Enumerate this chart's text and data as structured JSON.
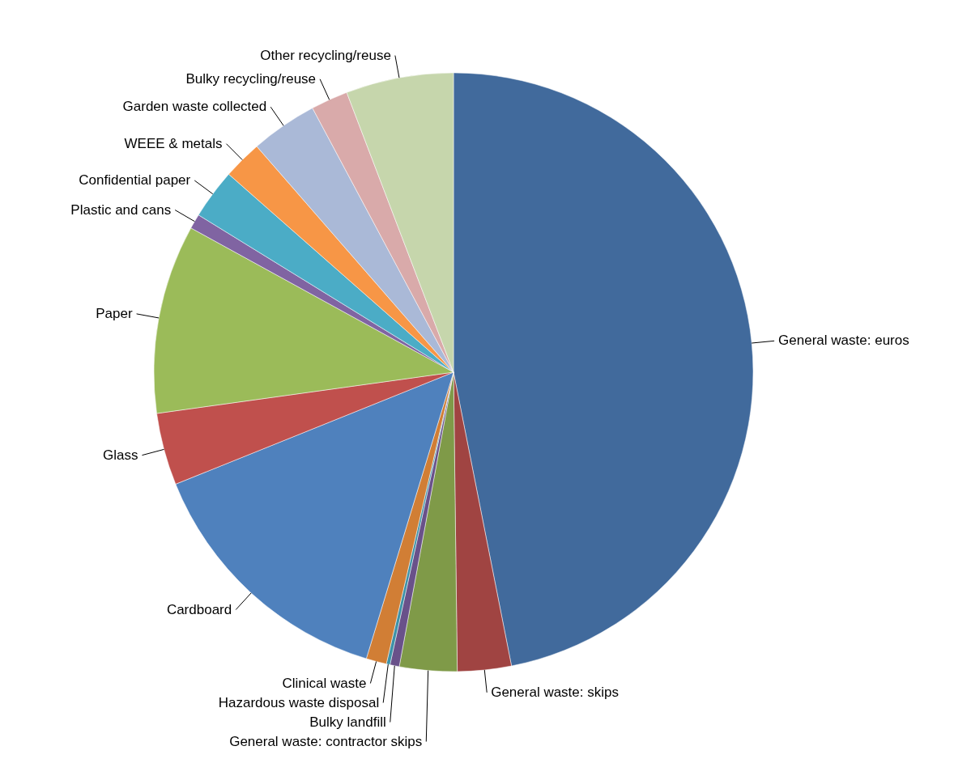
{
  "chart_data": {
    "type": "pie",
    "categories": [
      "General waste: euros",
      "General waste: skips",
      "General waste: contractor skips",
      "Bulky landfill",
      "Hazardous waste disposal",
      "Clinical waste",
      "Cardboard",
      "Glass",
      "Paper",
      "Plastic and cans",
      "Confidential paper",
      "WEEE & metals",
      "Garden waste collected",
      "Bulky recycling/reuse",
      "Other recycling/reuse"
    ],
    "values": [
      46.9,
      2.9,
      3.1,
      0.5,
      0.2,
      1.1,
      14.2,
      3.9,
      10.2,
      0.8,
      2.7,
      2.1,
      3.6,
      2.0,
      5.8
    ],
    "colors": [
      "#416a9c",
      "#a04442",
      "#7f9a48",
      "#69518a",
      "#3d92a8",
      "#d17e35",
      "#4f81bd",
      "#c0504d",
      "#9bbb59",
      "#8064a2",
      "#4bacc6",
      "#f79646",
      "#aab9d7",
      "#d9aaaa",
      "#c6d6ac"
    ]
  }
}
